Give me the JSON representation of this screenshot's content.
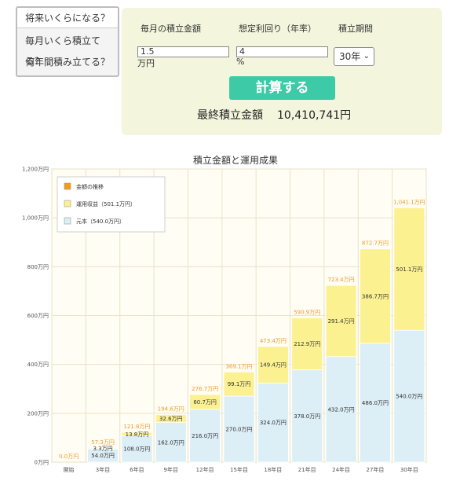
{
  "tabs": [
    "将来いくらになる？",
    "毎月いくら積立てる？",
    "何年間積み立てる？"
  ],
  "form": {
    "monthly_label": "毎月の積立金額",
    "monthly_value": "1.5",
    "monthly_unit": "万円",
    "rate_label": "想定利回り（年率）",
    "rate_value": "4",
    "rate_unit": "%",
    "period_label": "積立期間",
    "period_value": "30年",
    "submit_label": "計算する",
    "result_label": "最終積立金額",
    "result_value": "10,410,741円"
  },
  "colors": {
    "principal": "#dceef6",
    "gain": "#fcf191",
    "total_label": "#f09a2a",
    "plot_bg": "#fffdf4",
    "marker": "#f39c12",
    "button": "#3ccaa7",
    "panel": "#f3f6dd"
  },
  "chart_data": {
    "type": "bar",
    "stacked": true,
    "title": "積立金額と運用成果",
    "categories": [
      "開始",
      "3年目",
      "6年目",
      "9年目",
      "12年目",
      "15年目",
      "18年目",
      "21年目",
      "24年目",
      "27年目",
      "30年目"
    ],
    "series": [
      {
        "name": "元本（540.0万円）",
        "values": [
          0,
          54.0,
          108.0,
          162.0,
          216.0,
          270.0,
          324.0,
          378.0,
          432.0,
          486.0,
          540.0
        ],
        "labels": [
          "",
          "54.0万円",
          "108.0万円",
          "162.0万円",
          "216.0万円",
          "270.0万円",
          "324.0万円",
          "378.0万円",
          "432.0万円",
          "486.0万円",
          "540.0万円"
        ]
      },
      {
        "name": "運用収益（501.1万円）",
        "values": [
          0,
          3.3,
          13.8,
          32.6,
          60.7,
          99.1,
          149.4,
          212.9,
          291.4,
          386.7,
          501.1
        ],
        "labels": [
          "",
          "3.3万円",
          "13.8万円",
          "32.6万円",
          "60.7万円",
          "99.1万円",
          "149.4万円",
          "212.9万円",
          "291.4万円",
          "386.7万円",
          "501.1万円"
        ]
      }
    ],
    "totals": {
      "name": "金額の推移",
      "values": [
        0.0,
        57.3,
        121.8,
        194.6,
        276.7,
        369.1,
        473.4,
        590.9,
        723.4,
        872.7,
        1041.1
      ],
      "labels": [
        "0.0万円",
        "57.3万円",
        "121.8万円",
        "194.6万円",
        "276.7万円",
        "369.1万円",
        "473.4万円",
        "590.9万円",
        "723.4万円",
        "872.7万円",
        "1,041.1万円"
      ]
    },
    "yticks": [
      0,
      200,
      400,
      600,
      800,
      1000,
      1200
    ],
    "ytick_labels": [
      "0万円",
      "200万円",
      "400万円",
      "600万円",
      "800万円",
      "1,000万円",
      "1,200万円"
    ],
    "ylim": [
      0,
      1200
    ],
    "legend_position": "top-left",
    "grid": true
  }
}
